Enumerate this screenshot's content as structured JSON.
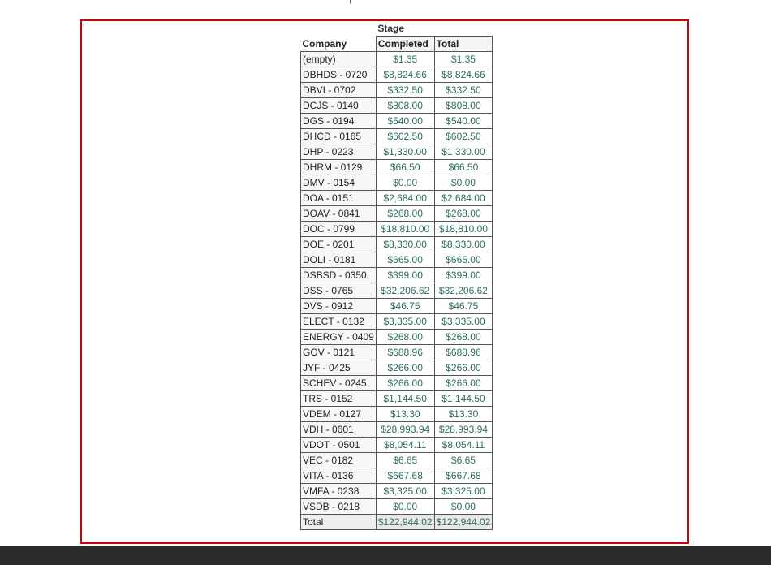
{
  "pivot": {
    "stage_label": "Stage",
    "row_header": "Company",
    "col_completed": "Completed",
    "col_total": "Total",
    "rows": [
      {
        "company": "(empty)",
        "completed": "$1.35",
        "total": "$1.35"
      },
      {
        "company": "DBHDS - 0720",
        "completed": "$8,824.66",
        "total": "$8,824.66"
      },
      {
        "company": "DBVI - 0702",
        "completed": "$332.50",
        "total": "$332.50"
      },
      {
        "company": "DCJS - 0140",
        "completed": "$808.00",
        "total": "$808.00"
      },
      {
        "company": "DGS - 0194",
        "completed": "$540.00",
        "total": "$540.00"
      },
      {
        "company": "DHCD - 0165",
        "completed": "$602.50",
        "total": "$602.50"
      },
      {
        "company": "DHP - 0223",
        "completed": "$1,330.00",
        "total": "$1,330.00"
      },
      {
        "company": "DHRM - 0129",
        "completed": "$66.50",
        "total": "$66.50"
      },
      {
        "company": "DMV - 0154",
        "completed": "$0.00",
        "total": "$0.00"
      },
      {
        "company": "DOA - 0151",
        "completed": "$2,684.00",
        "total": "$2,684.00"
      },
      {
        "company": "DOAV - 0841",
        "completed": "$268.00",
        "total": "$268.00"
      },
      {
        "company": "DOC - 0799",
        "completed": "$18,810.00",
        "total": "$18,810.00"
      },
      {
        "company": "DOE - 0201",
        "completed": "$8,330.00",
        "total": "$8,330.00"
      },
      {
        "company": "DOLI - 0181",
        "completed": "$665.00",
        "total": "$665.00"
      },
      {
        "company": "DSBSD - 0350",
        "completed": "$399.00",
        "total": "$399.00"
      },
      {
        "company": "DSS - 0765",
        "completed": "$32,206.62",
        "total": "$32,206.62"
      },
      {
        "company": "DVS - 0912",
        "completed": "$46.75",
        "total": "$46.75"
      },
      {
        "company": "ELECT - 0132",
        "completed": "$3,335.00",
        "total": "$3,335.00"
      },
      {
        "company": "ENERGY - 0409",
        "completed": "$268.00",
        "total": "$268.00"
      },
      {
        "company": "GOV - 0121",
        "completed": "$688.96",
        "total": "$688.96"
      },
      {
        "company": "JYF - 0425",
        "completed": "$266.00",
        "total": "$266.00"
      },
      {
        "company": "SCHEV - 0245",
        "completed": "$266.00",
        "total": "$266.00"
      },
      {
        "company": "TRS - 0152",
        "completed": "$1,144.50",
        "total": "$1,144.50"
      },
      {
        "company": "VDEM - 0127",
        "completed": "$13.30",
        "total": "$13.30"
      },
      {
        "company": "VDH - 0601",
        "completed": "$28,993.94",
        "total": "$28,993.94"
      },
      {
        "company": "VDOT - 0501",
        "completed": "$8,054.11",
        "total": "$8,054.11"
      },
      {
        "company": "VEC - 0182",
        "completed": "$6.65",
        "total": "$6.65"
      },
      {
        "company": "VITA - 0136",
        "completed": "$667.68",
        "total": "$667.68"
      },
      {
        "company": "VMFA - 0238",
        "completed": "$3,325.00",
        "total": "$3,325.00"
      },
      {
        "company": "VSDB - 0218",
        "completed": "$0.00",
        "total": "$0.00"
      }
    ],
    "total_row": {
      "company": "Total",
      "completed": "$122,944.02",
      "total": "$122,944.02"
    }
  },
  "colors": {
    "frame_border": "#cc0000",
    "value_text": "#2e6b63",
    "bottom_bar": "#2b2b2b"
  }
}
